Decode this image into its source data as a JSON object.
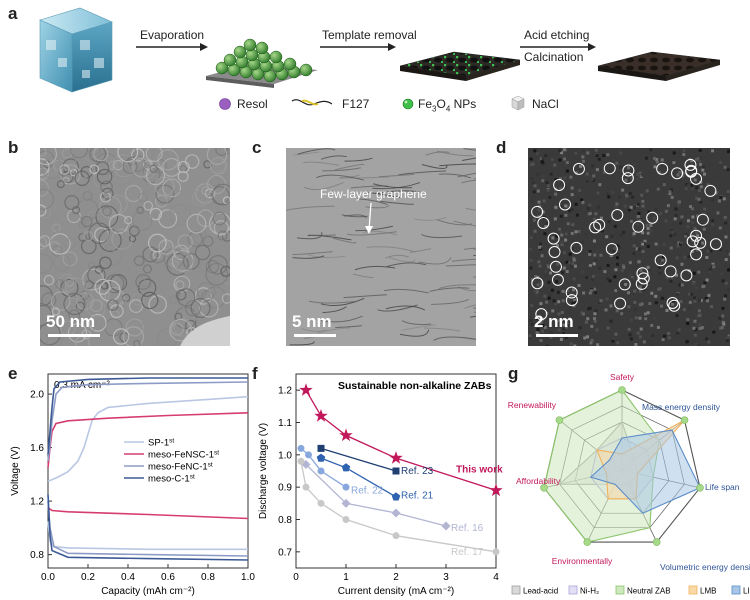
{
  "panel_a": {
    "label": "a",
    "steps": [
      "Evaporation",
      "Template removal",
      "Acid etching",
      "Calcination"
    ],
    "legend": [
      {
        "name": "Resol",
        "icon": "purple-sphere-icon"
      },
      {
        "name": "F127",
        "icon": "polymer-chain-icon"
      },
      {
        "name": "Fe",
        "sub": "3",
        "mid": "O",
        "sub2": "4",
        "tail": " NPs",
        "icon": "green-nanoparticle-icon"
      },
      {
        "name": "NaCl",
        "icon": "salt-cube-icon"
      }
    ]
  },
  "panel_b": {
    "label": "b",
    "scale": "50 nm"
  },
  "panel_c": {
    "label": "c",
    "scale": "5 nm",
    "annotation": "Few-layer graphene"
  },
  "panel_d": {
    "label": "d",
    "scale": "2 nm"
  },
  "panel_e": {
    "label": "e"
  },
  "panel_f": {
    "label": "f"
  },
  "panel_g": {
    "label": "g"
  },
  "chart_data": [
    {
      "type": "line",
      "panel": "e",
      "annotation": "0.3 mA cm⁻²",
      "xlabel": "Capacity (mAh cm⁻²)",
      "ylabel": "Voltage (V)",
      "xlim": [
        0,
        1.0
      ],
      "ylim": [
        0.7,
        2.15
      ],
      "xticks": [
        "0.0",
        "0.2",
        "0.4",
        "0.6",
        "0.8",
        "1.0"
      ],
      "yticks": [
        "0.8",
        "1.2",
        "1.6",
        "2.0"
      ],
      "legend_position": "center-right",
      "series": [
        {
          "name": "SP-1st",
          "color": "#b9c7e3",
          "charge": [
            [
              0,
              1.35
            ],
            [
              0.02,
              1.36
            ],
            [
              0.05,
              1.38
            ],
            [
              0.1,
              1.42
            ],
            [
              0.15,
              1.5
            ],
            [
              0.18,
              1.6
            ],
            [
              0.2,
              1.7
            ],
            [
              0.22,
              1.8
            ],
            [
              0.25,
              1.86
            ],
            [
              0.3,
              1.9
            ],
            [
              0.5,
              1.93
            ],
            [
              0.8,
              1.96
            ],
            [
              1.0,
              1.98
            ]
          ],
          "discharge": [
            [
              0,
              1.05
            ],
            [
              0.01,
              0.9
            ],
            [
              0.03,
              0.86
            ],
            [
              0.1,
              0.85
            ],
            [
              0.5,
              0.84
            ],
            [
              1.0,
              0.84
            ]
          ]
        },
        {
          "name": "meso-FeNSC-1st",
          "color": "#d63d6f",
          "charge": [
            [
              0,
              1.45
            ],
            [
              0.01,
              1.6
            ],
            [
              0.02,
              1.72
            ],
            [
              0.04,
              1.78
            ],
            [
              0.1,
              1.8
            ],
            [
              0.3,
              1.82
            ],
            [
              0.6,
              1.84
            ],
            [
              1.0,
              1.86
            ]
          ],
          "discharge": [
            [
              0,
              1.15
            ],
            [
              0.02,
              1.13
            ],
            [
              0.1,
              1.12
            ],
            [
              0.5,
              1.1
            ],
            [
              1.0,
              1.07
            ]
          ]
        },
        {
          "name": "meso-FeNC-1st",
          "color": "#8d9bc6",
          "charge": [
            [
              0,
              1.5
            ],
            [
              0.01,
              1.62
            ],
            [
              0.02,
              1.8
            ],
            [
              0.04,
              2.0
            ],
            [
              0.07,
              2.05
            ],
            [
              0.2,
              2.07
            ],
            [
              0.5,
              2.08
            ],
            [
              1.0,
              2.09
            ]
          ],
          "discharge": [
            [
              0,
              1.2
            ],
            [
              0.01,
              1.0
            ],
            [
              0.03,
              0.86
            ],
            [
              0.1,
              0.81
            ],
            [
              0.5,
              0.8
            ],
            [
              1.0,
              0.79
            ]
          ]
        },
        {
          "name": "meso-C-1st",
          "color": "#3d5a96",
          "charge": [
            [
              0,
              1.55
            ],
            [
              0.01,
              1.72
            ],
            [
              0.02,
              1.9
            ],
            [
              0.03,
              2.04
            ],
            [
              0.06,
              2.09
            ],
            [
              0.2,
              2.11
            ],
            [
              0.5,
              2.12
            ],
            [
              1.0,
              2.12
            ]
          ],
          "discharge": [
            [
              0,
              1.25
            ],
            [
              0.01,
              0.95
            ],
            [
              0.02,
              0.83
            ],
            [
              0.1,
              0.78
            ],
            [
              0.5,
              0.77
            ],
            [
              1.0,
              0.76
            ]
          ]
        }
      ]
    },
    {
      "type": "line",
      "panel": "f",
      "title": "Sustainable non-alkaline ZABs",
      "xlabel": "Current density (mA cm⁻²)",
      "ylabel": "Discharge voltage (V)",
      "xlim": [
        0,
        4
      ],
      "ylim": [
        0.65,
        1.25
      ],
      "xticks": [
        "0",
        "1",
        "2",
        "3",
        "4"
      ],
      "yticks": [
        "0.7",
        "0.8",
        "0.9",
        "1.0",
        "1.1",
        "1.2"
      ],
      "series": [
        {
          "name": "This work",
          "color": "#c2185b",
          "marker": "star",
          "x": [
            0.2,
            0.5,
            1,
            2,
            4
          ],
          "y": [
            1.2,
            1.12,
            1.06,
            0.99,
            0.89
          ]
        },
        {
          "name": "Ref. 23",
          "color": "#1f3f73",
          "marker": "square",
          "x": [
            0.5,
            2
          ],
          "y": [
            1.02,
            0.95
          ]
        },
        {
          "name": "Ref. 21",
          "color": "#2f62b0",
          "marker": "pentagon",
          "x": [
            0.5,
            1,
            2
          ],
          "y": [
            0.99,
            0.96,
            0.87
          ]
        },
        {
          "name": "Ref. 22",
          "color": "#88a7dc",
          "marker": "circle",
          "x": [
            0.1,
            0.25,
            0.5,
            1
          ],
          "y": [
            1.02,
            1.0,
            0.95,
            0.9
          ]
        },
        {
          "name": "Ref. 16",
          "color": "#b3b5d3",
          "marker": "diamond",
          "x": [
            0.2,
            1,
            2,
            3
          ],
          "y": [
            0.97,
            0.85,
            0.82,
            0.78
          ]
        },
        {
          "name": "Ref. 17",
          "color": "#c8c8c8",
          "marker": "circle",
          "x": [
            0.1,
            0.2,
            0.5,
            1,
            2,
            4
          ],
          "y": [
            0.98,
            0.9,
            0.85,
            0.8,
            0.75,
            0.7
          ]
        }
      ]
    },
    {
      "type": "radar",
      "panel": "g",
      "axes": [
        {
          "name": "Safety",
          "color": "#c2185b"
        },
        {
          "name": "Mass energy density",
          "color": "#2f5597"
        },
        {
          "name": "Life span",
          "color": "#2f5597"
        },
        {
          "name": "Volumetric energy density",
          "color": "#2f5597"
        },
        {
          "name": "Environmentally",
          "color": "#c2185b"
        },
        {
          "name": "Affordability",
          "color": "#c2185b"
        },
        {
          "name": "Renewability",
          "color": "#c2185b"
        }
      ],
      "levels": 5,
      "series": [
        {
          "name": "Lead-acid",
          "color": "#9e9e9e",
          "fill": "#d9d9d9",
          "values": [
            3,
            1,
            1,
            1,
            1,
            4,
            2
          ]
        },
        {
          "name": "Ni-H₂",
          "color": "#a9a3d9",
          "fill": "#e3e0f5",
          "values": [
            2,
            2,
            2,
            2,
            2,
            2,
            2
          ]
        },
        {
          "name": "Neutral ZAB",
          "color": "#8cc56b",
          "fill": "#cfe7bd",
          "values": [
            5,
            3,
            2,
            4,
            5,
            5,
            5
          ]
        },
        {
          "name": "LMB",
          "color": "#f2b25a",
          "fill": "#f9d9a7",
          "values": [
            1,
            5,
            1,
            2,
            2,
            1,
            2
          ]
        },
        {
          "name": "LIB",
          "color": "#5b8ec9",
          "fill": "#a8c6e6",
          "values": [
            2,
            4,
            5,
            3,
            1,
            2,
            1
          ]
        }
      ]
    }
  ]
}
